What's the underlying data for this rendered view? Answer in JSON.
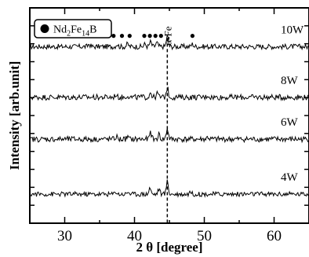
{
  "chart_data": {
    "type": "line",
    "xlabel": "2 θ [degree]",
    "ylabel": "Intensity [arb.unit]",
    "xlim": [
      25,
      65
    ],
    "xticks": [
      30,
      40,
      50,
      60
    ],
    "y_tick_labels_shown": false,
    "grid": false,
    "legend": {
      "placement": "top-left",
      "marker": "filled-circle",
      "label_parts": [
        "Nd",
        "2",
        "Fe",
        "14",
        "B"
      ]
    },
    "reference_line": {
      "x": 44.7,
      "style": "dashed",
      "label": "α-Fe"
    },
    "series": [
      {
        "name": "10W",
        "baseline": 0.82,
        "noise": 0.012,
        "peaks": [
          [
            33.5,
            0.012
          ],
          [
            37.5,
            0.012
          ],
          [
            39.0,
            0.012
          ],
          [
            41.5,
            0.012
          ],
          [
            42.3,
            0.022
          ],
          [
            43.2,
            0.018
          ],
          [
            44.7,
            0.05
          ],
          [
            48.3,
            0.012
          ]
        ],
        "phase_markers_x": [
          33.3,
          35.0,
          37.0,
          38.2,
          39.3,
          41.4,
          42.2,
          43.0,
          43.8,
          48.3
        ]
      },
      {
        "name": "8W",
        "baseline": 0.585,
        "noise": 0.013,
        "peaks": [
          [
            37.3,
            0.012
          ],
          [
            39.0,
            0.01
          ],
          [
            42.3,
            0.024
          ],
          [
            43.3,
            0.018
          ],
          [
            44.7,
            0.045
          ],
          [
            50.5,
            0.01
          ]
        ],
        "phase_markers_x": []
      },
      {
        "name": "6W",
        "baseline": 0.39,
        "noise": 0.013,
        "peaks": [
          [
            37.4,
            0.012
          ],
          [
            39.0,
            0.01
          ],
          [
            42.3,
            0.03
          ],
          [
            43.5,
            0.022
          ],
          [
            44.7,
            0.05
          ],
          [
            50.5,
            0.01
          ]
        ],
        "phase_markers_x": []
      },
      {
        "name": "4W",
        "baseline": 0.135,
        "noise": 0.011,
        "peaks": [
          [
            37.3,
            0.013
          ],
          [
            39.1,
            0.012
          ],
          [
            42.2,
            0.03
          ],
          [
            43.5,
            0.024
          ],
          [
            44.7,
            0.06
          ],
          [
            48.0,
            0.012
          ]
        ],
        "phase_markers_x": []
      }
    ]
  }
}
